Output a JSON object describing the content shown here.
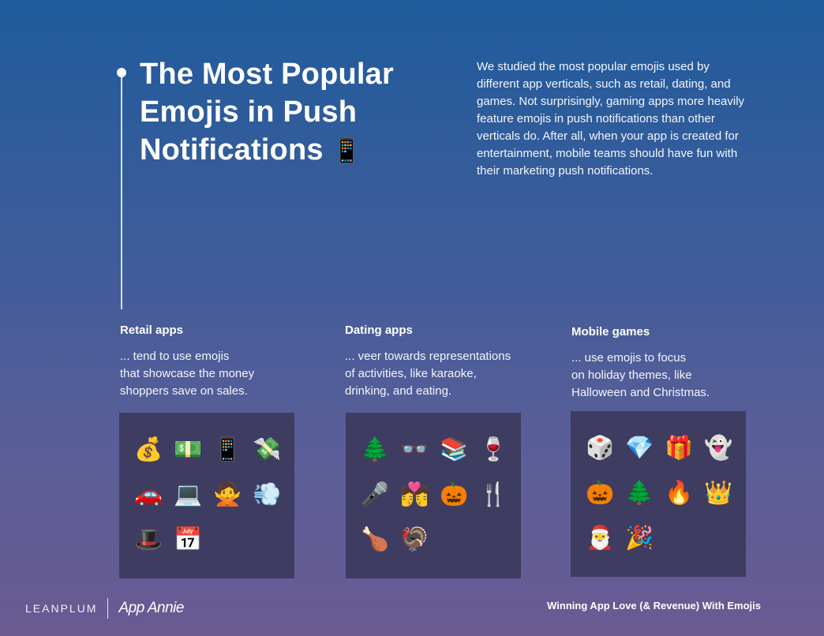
{
  "header": {
    "title_line1": "The Most Popular",
    "title_line2": "Emojis in Push",
    "title_line3": "Notifications",
    "title_emoji": "📱",
    "intro": "We studied the most popular emojis used by different app verticals, such as retail, dating, and games. Not surprisingly, gaming apps more heavily feature emojis in push notifications than other verticals do. After all, when your app is created for entertainment, mobile teams should have fun with their marketing push notifications."
  },
  "sections": [
    {
      "title": "Retail apps",
      "lines": [
        "... tend to use emojis",
        "that showcase the money",
        "shoppers save on sales."
      ],
      "emojis": [
        "💰",
        "💵",
        "📱",
        "💸",
        "🚗",
        "💻",
        "🙅",
        "💨",
        "🎩",
        "📅"
      ]
    },
    {
      "title": "Dating apps",
      "lines": [
        "... veer towards representations",
        "of activities, like karaoke,",
        "drinking, and eating."
      ],
      "emojis": [
        "🌲",
        "👓",
        "📚",
        "🍷",
        "🎤",
        "💏",
        "🎃",
        "🍴",
        "🍗",
        "🦃"
      ]
    },
    {
      "title": "Mobile games",
      "lines": [
        "... use emojis to focus",
        "on holiday themes, like",
        "Halloween and Christmas."
      ],
      "emojis": [
        "🎲",
        "💎",
        "🎁",
        "👻",
        "🎃",
        "🌲",
        "🔥",
        "👑",
        "🎅",
        "🎉"
      ]
    }
  ],
  "footer": {
    "brand_1": "LEANPLUM",
    "brand_2": "App Annie",
    "doc_title": "Winning App Love (& Revenue) With Emojis"
  },
  "colors": {
    "panel_bg": "#3f3c61",
    "gradient_top": "#1f5b9c",
    "gradient_bottom": "#6a5a92"
  }
}
